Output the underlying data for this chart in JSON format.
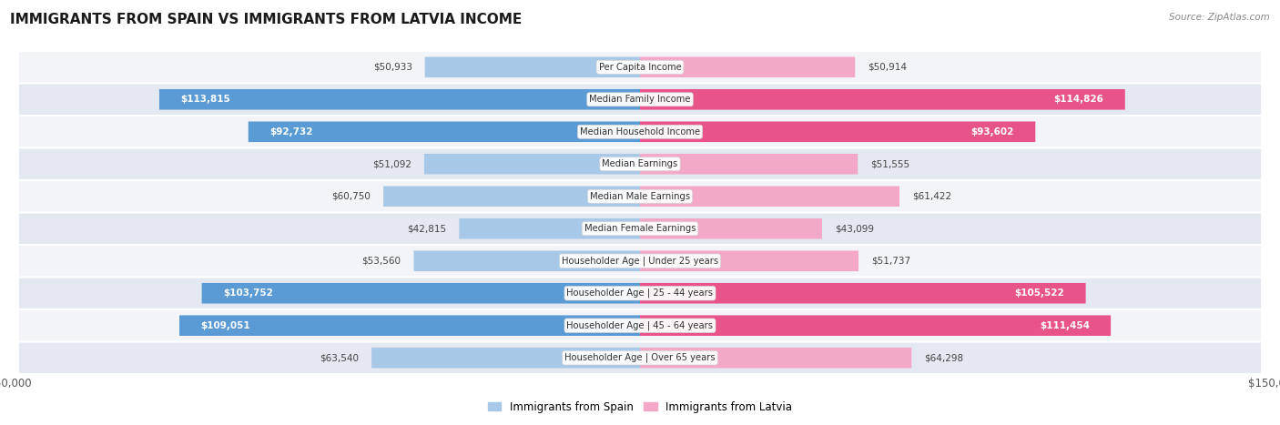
{
  "title": "IMMIGRANTS FROM SPAIN VS IMMIGRANTS FROM LATVIA INCOME",
  "source": "Source: ZipAtlas.com",
  "categories": [
    "Per Capita Income",
    "Median Family Income",
    "Median Household Income",
    "Median Earnings",
    "Median Male Earnings",
    "Median Female Earnings",
    "Householder Age | Under 25 years",
    "Householder Age | 25 - 44 years",
    "Householder Age | 45 - 64 years",
    "Householder Age | Over 65 years"
  ],
  "spain_values": [
    50933,
    113815,
    92732,
    51092,
    60750,
    42815,
    53560,
    103752,
    109051,
    63540
  ],
  "latvia_values": [
    50914,
    114826,
    93602,
    51555,
    61422,
    43099,
    51737,
    105522,
    111454,
    64298
  ],
  "spain_color_large": "#5b9bd5",
  "spain_color_small": "#a8c8e8",
  "latvia_color_large": "#e8538a",
  "latvia_color_small": "#f4a8c8",
  "row_bg_light": "#f2f4f8",
  "row_bg_dark": "#e4e8f0",
  "spain_legend": "Immigrants from Spain",
  "latvia_legend": "Immigrants from Latvia",
  "max_value": 150000,
  "threshold": 70000,
  "background_color": "#ffffff"
}
